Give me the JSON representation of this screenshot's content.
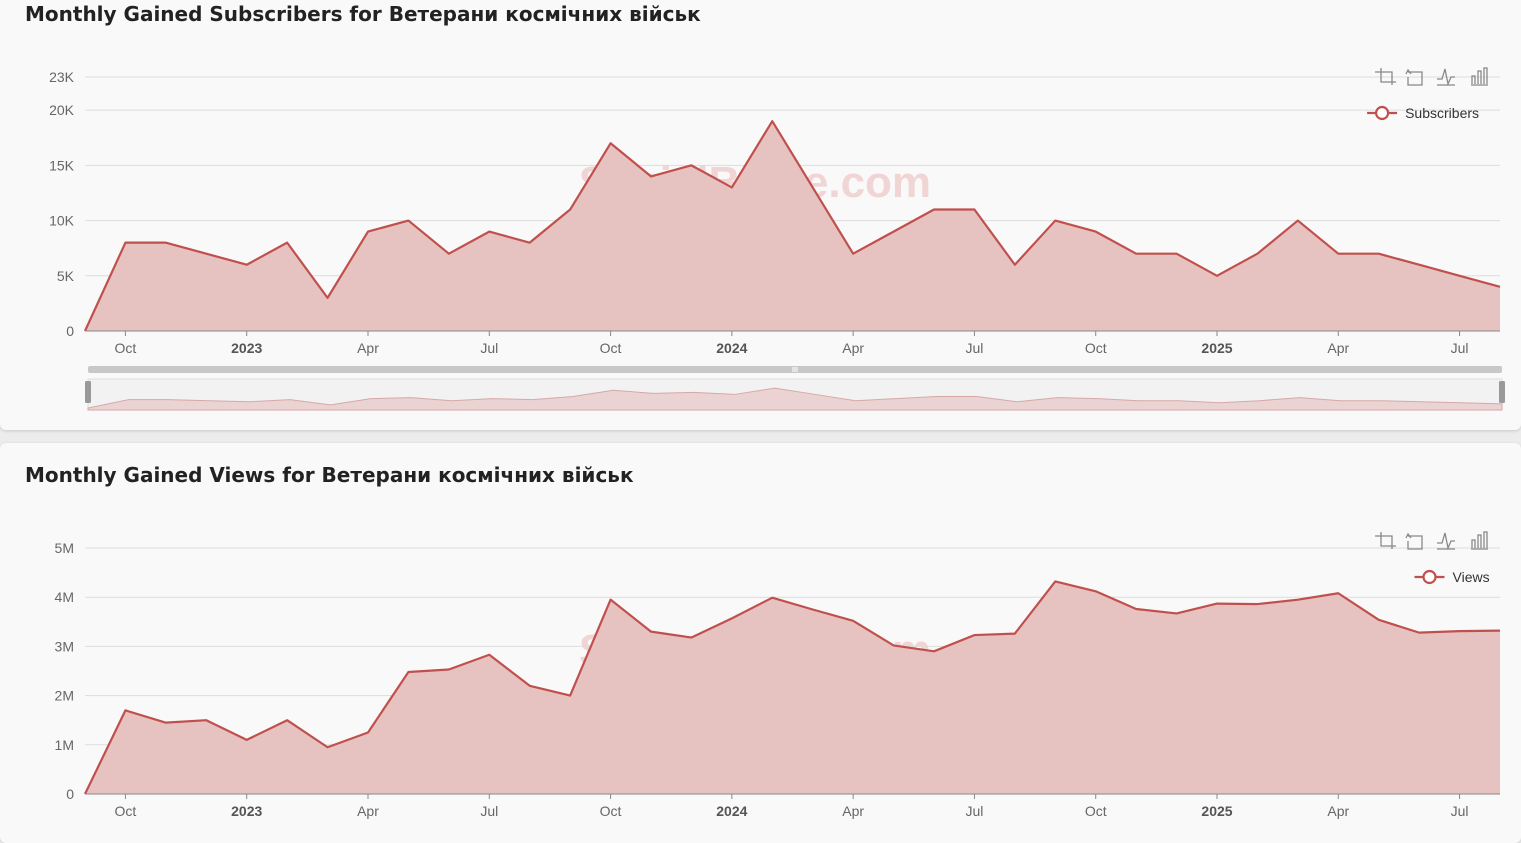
{
  "colors": {
    "line": "#c0504d",
    "area": "#e6c3c1",
    "grid": "#dddddd",
    "axis": "#888888",
    "watermark": "#f1d4d4",
    "slider": "#c8c8c8"
  },
  "watermark": "SocialBlade.com",
  "toolbox_icons": [
    "zoom-icon",
    "zoom-reset-icon",
    "line-chart-icon",
    "bar-chart-icon"
  ],
  "x_axis_labels": [
    {
      "label": "Oct",
      "month": 2,
      "bold": false
    },
    {
      "label": "2023",
      "month": 5,
      "bold": true
    },
    {
      "label": "Apr",
      "month": 8,
      "bold": false
    },
    {
      "label": "Jul",
      "month": 11,
      "bold": false
    },
    {
      "label": "Oct",
      "month": 14,
      "bold": false
    },
    {
      "label": "2024",
      "month": 17,
      "bold": true
    },
    {
      "label": "Apr",
      "month": 20,
      "bold": false
    },
    {
      "label": "Jul",
      "month": 23,
      "bold": false
    },
    {
      "label": "Oct",
      "month": 26,
      "bold": false
    },
    {
      "label": "2025",
      "month": 29,
      "bold": true
    },
    {
      "label": "Apr",
      "month": 32,
      "bold": false
    },
    {
      "label": "Jul",
      "month": 35,
      "bold": false
    }
  ],
  "chart_data": [
    {
      "type": "area",
      "title": "Monthly Gained Subscribers for Ветерани космічних військ",
      "legend": "Subscribers",
      "legend_position": "top-right",
      "grid": true,
      "ylim": [
        0,
        23000
      ],
      "yticks": [
        {
          "label": "0",
          "value": 0
        },
        {
          "label": "5K",
          "value": 5000
        },
        {
          "label": "10K",
          "value": 10000
        },
        {
          "label": "15K",
          "value": 15000
        },
        {
          "label": "20K",
          "value": 20000
        },
        {
          "label": "23K",
          "value": 23000
        }
      ],
      "x_range_months": [
        1,
        36
      ],
      "start_month_index": 1,
      "series": [
        {
          "name": "Subscribers",
          "values": [
            0,
            8000,
            8000,
            7000,
            6000,
            8000,
            3000,
            9000,
            10000,
            7000,
            9000,
            8000,
            11000,
            17000,
            14000,
            15000,
            13000,
            19000,
            13000,
            7000,
            9000,
            11000,
            11000,
            6000,
            10000,
            9000,
            7000,
            7000,
            5000,
            7000,
            10000,
            7000,
            7000,
            6000,
            5000,
            4000
          ]
        }
      ],
      "has_zoom_slider": true
    },
    {
      "type": "area",
      "title": "Monthly Gained Views for Ветерани космічних військ",
      "legend": "Views",
      "legend_position": "top-right",
      "grid": true,
      "ylim": [
        0,
        5000000
      ],
      "yticks": [
        {
          "label": "0",
          "value": 0
        },
        {
          "label": "1M",
          "value": 1000000
        },
        {
          "label": "2M",
          "value": 2000000
        },
        {
          "label": "3M",
          "value": 3000000
        },
        {
          "label": "4M",
          "value": 4000000
        },
        {
          "label": "5M",
          "value": 5000000
        }
      ],
      "x_range_months": [
        1,
        36
      ],
      "start_month_index": 1,
      "series": [
        {
          "name": "Views",
          "values": [
            0,
            1700000,
            1450000,
            1500000,
            1100000,
            1500000,
            950000,
            1250000,
            2480000,
            2530000,
            2830000,
            2200000,
            2000000,
            3950000,
            3300000,
            3180000,
            3570000,
            3990000,
            3750000,
            3520000,
            3020000,
            2900000,
            3230000,
            3260000,
            4320000,
            4120000,
            3760000,
            3670000,
            3870000,
            3860000,
            3950000,
            4080000,
            3540000,
            3280000,
            3310000,
            3320000
          ]
        }
      ],
      "has_zoom_slider": false
    }
  ]
}
